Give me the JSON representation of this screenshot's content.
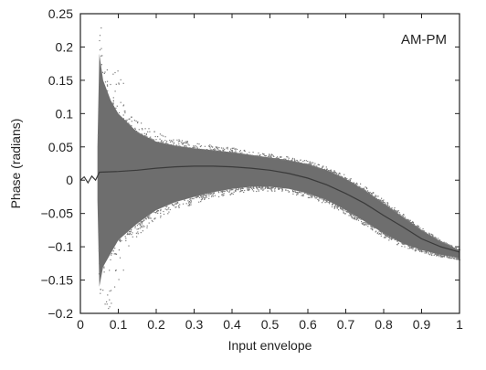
{
  "chart_data": {
    "type": "scatter",
    "title": "",
    "xlabel": "Input envelope",
    "ylabel": "Phase (radians)",
    "annotation": "AM-PM",
    "xlim": [
      0,
      1
    ],
    "ylim": [
      -0.2,
      0.25
    ],
    "xticks": [
      0,
      0.1,
      0.2,
      0.3,
      0.4,
      0.5,
      0.6,
      0.7,
      0.8,
      0.9,
      1
    ],
    "xtick_labels": [
      "0",
      "0.1",
      "0.2",
      "0.3",
      "0.4",
      "0.5",
      "0.6",
      "0.7",
      "0.8",
      "0.9",
      "1"
    ],
    "yticks": [
      -0.2,
      -0.15,
      -0.1,
      -0.05,
      0,
      0.05,
      0.1,
      0.15,
      0.2,
      0.25
    ],
    "ytick_labels": [
      "−0.2",
      "−0.15",
      "−0.1",
      "−0.05",
      "0",
      "0.05",
      "0.1",
      "0.15",
      "0.2",
      "0.25"
    ],
    "grid": false,
    "colors": {
      "scatter": "#7a7a7a",
      "band": "#6e6e6e",
      "fit_line": "#3a3a3a",
      "axes": "#222222"
    },
    "scatter_band": {
      "x": [
        0.045,
        0.05,
        0.06,
        0.08,
        0.1,
        0.15,
        0.2,
        0.25,
        0.3,
        0.35,
        0.4,
        0.45,
        0.5,
        0.55,
        0.6,
        0.65,
        0.7,
        0.75,
        0.8,
        0.85,
        0.9,
        0.95,
        0.98,
        1.0
      ],
      "upper": [
        0.05,
        0.19,
        0.15,
        0.12,
        0.1,
        0.072,
        0.058,
        0.052,
        0.048,
        0.045,
        0.042,
        0.038,
        0.034,
        0.03,
        0.024,
        0.015,
        0.002,
        -0.015,
        -0.035,
        -0.055,
        -0.075,
        -0.092,
        -0.1,
        -0.105
      ],
      "lower": [
        -0.03,
        -0.16,
        -0.13,
        -0.11,
        -0.09,
        -0.065,
        -0.045,
        -0.033,
        -0.025,
        -0.018,
        -0.013,
        -0.01,
        -0.01,
        -0.013,
        -0.02,
        -0.03,
        -0.045,
        -0.062,
        -0.08,
        -0.095,
        -0.105,
        -0.112,
        -0.115,
        -0.118
      ]
    },
    "series": [
      {
        "x": [
          0.0,
          0.01,
          0.02,
          0.03,
          0.04,
          0.05,
          0.1,
          0.15,
          0.2,
          0.25,
          0.3,
          0.35,
          0.4,
          0.45,
          0.5,
          0.55,
          0.6,
          0.65,
          0.7,
          0.75,
          0.8,
          0.85,
          0.9,
          0.95,
          1.0
        ],
        "y": [
          0.0,
          0.005,
          -0.004,
          0.006,
          0.0,
          0.012,
          0.013,
          0.015,
          0.018,
          0.02,
          0.021,
          0.021,
          0.02,
          0.018,
          0.015,
          0.01,
          0.003,
          -0.007,
          -0.02,
          -0.035,
          -0.053,
          -0.07,
          -0.088,
          -0.1,
          -0.108
        ]
      }
    ]
  }
}
